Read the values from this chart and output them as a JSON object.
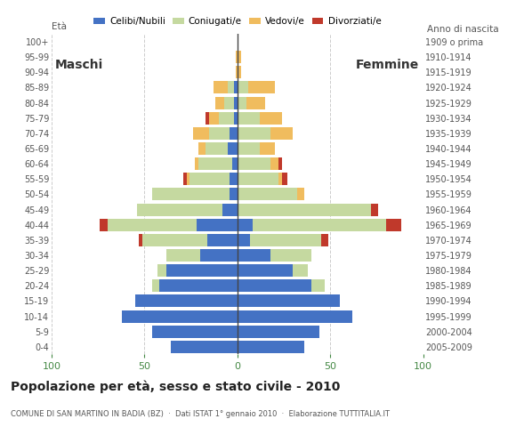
{
  "age_groups": [
    "0-4",
    "5-9",
    "10-14",
    "15-19",
    "20-24",
    "25-29",
    "30-34",
    "35-39",
    "40-44",
    "45-49",
    "50-54",
    "55-59",
    "60-64",
    "65-69",
    "70-74",
    "75-79",
    "80-84",
    "85-89",
    "90-94",
    "95-99",
    "100+"
  ],
  "birth_years": [
    "2005-2009",
    "2000-2004",
    "1995-1999",
    "1990-1994",
    "1985-1989",
    "1980-1984",
    "1975-1979",
    "1970-1974",
    "1965-1969",
    "1960-1964",
    "1955-1959",
    "1950-1954",
    "1945-1949",
    "1940-1944",
    "1935-1939",
    "1930-1934",
    "1925-1929",
    "1920-1924",
    "1915-1919",
    "1910-1914",
    "1909 o prima"
  ],
  "colors": {
    "celibe": "#4472c4",
    "coniugato": "#c5d9a0",
    "vedovo": "#f0bc5e",
    "divorziato": "#c0392b"
  },
  "maschi": {
    "celibe": [
      36,
      46,
      62,
      55,
      42,
      38,
      20,
      16,
      22,
      8,
      4,
      4,
      3,
      5,
      4,
      2,
      2,
      2,
      0,
      0,
      0
    ],
    "coniugato": [
      0,
      0,
      0,
      0,
      4,
      5,
      18,
      35,
      48,
      46,
      42,
      22,
      18,
      12,
      11,
      8,
      5,
      3,
      0,
      0,
      0
    ],
    "vedovo": [
      0,
      0,
      0,
      0,
      0,
      0,
      0,
      0,
      0,
      0,
      0,
      1,
      2,
      4,
      9,
      5,
      5,
      8,
      1,
      1,
      0
    ],
    "divorziato": [
      0,
      0,
      0,
      0,
      0,
      0,
      0,
      2,
      4,
      0,
      0,
      2,
      0,
      0,
      0,
      2,
      0,
      0,
      0,
      0,
      0
    ]
  },
  "femmine": {
    "celibe": [
      36,
      44,
      62,
      55,
      40,
      30,
      18,
      7,
      8,
      0,
      0,
      0,
      0,
      0,
      0,
      0,
      0,
      0,
      0,
      0,
      0
    ],
    "coniugato": [
      0,
      0,
      0,
      0,
      7,
      8,
      22,
      38,
      72,
      72,
      32,
      22,
      18,
      12,
      18,
      12,
      5,
      6,
      0,
      0,
      0
    ],
    "vedovo": [
      0,
      0,
      0,
      0,
      0,
      0,
      0,
      0,
      0,
      0,
      4,
      2,
      4,
      8,
      12,
      12,
      10,
      14,
      2,
      2,
      0
    ],
    "divorziato": [
      0,
      0,
      0,
      0,
      0,
      0,
      0,
      4,
      8,
      4,
      0,
      3,
      2,
      0,
      0,
      0,
      0,
      0,
      0,
      0,
      0
    ]
  },
  "title": "Popolazione per età, sesso e stato civile - 2010",
  "subtitle": "COMUNE DI SAN MARTINO IN BADIA (BZ)  ·  Dati ISTAT 1° gennaio 2010  ·  Elaborazione TUTTITALIA.IT",
  "xlabel_left": "Maschi",
  "xlabel_right": "Femmine",
  "ylabel_left": "Età",
  "ylabel_right": "Anno di nascita",
  "xlim": 100,
  "bg_color": "#ffffff",
  "grid_color": "#cccccc",
  "bar_height": 0.82
}
